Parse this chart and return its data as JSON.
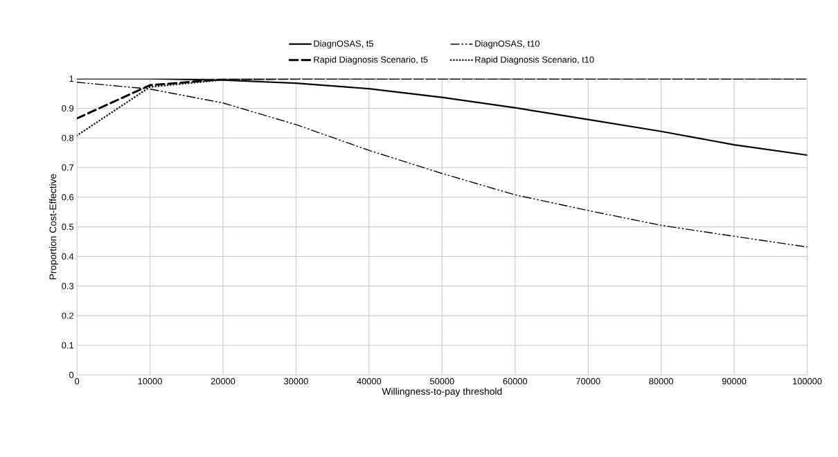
{
  "chart_data": {
    "type": "line",
    "xlabel": "Willingness-to-pay threshold",
    "ylabel": "Proportion Cost-Effective",
    "x": [
      0,
      10000,
      20000,
      30000,
      40000,
      50000,
      60000,
      70000,
      80000,
      90000,
      100000
    ],
    "series": [
      {
        "name": "DiagnOSAS, t5",
        "color": "#000000",
        "line_style": "solid",
        "values": [
          1,
          1,
          0.995,
          0.985,
          0.966,
          0.937,
          0.902,
          0.862,
          0.822,
          0.777,
          0.742
        ]
      },
      {
        "name": "DiagnOSAS, t10",
        "color": "#000000",
        "line_style": "dashdotdotted",
        "values": [
          0.988,
          0.965,
          0.918,
          0.845,
          0.758,
          0.68,
          0.608,
          0.555,
          0.505,
          0.468,
          0.432
        ]
      },
      {
        "name": "Rapid Diagnosis Scenario, t5",
        "color": "#000000",
        "line_style": "dashed",
        "values": [
          0.866,
          0.978,
          0.998,
          1,
          1,
          1,
          1,
          1,
          1,
          1,
          1
        ]
      },
      {
        "name": "Rapid Diagnosis Scenario, t10",
        "color": "#202020",
        "line_style": "dotted",
        "values": [
          0.808,
          0.972,
          0.996,
          1,
          1,
          1,
          1,
          1,
          1,
          1,
          1
        ]
      }
    ],
    "xlim": [
      0,
      100000
    ],
    "xticks": [
      0,
      10000,
      20000,
      30000,
      40000,
      50000,
      60000,
      70000,
      80000,
      90000,
      100000
    ],
    "ylim": [
      0,
      1
    ],
    "yticks": [
      0,
      0.1,
      0.2,
      0.3,
      0.4,
      0.5,
      0.6,
      0.7,
      0.8,
      0.9,
      1
    ],
    "grid": true,
    "legend": "top",
    "marker": "none"
  }
}
